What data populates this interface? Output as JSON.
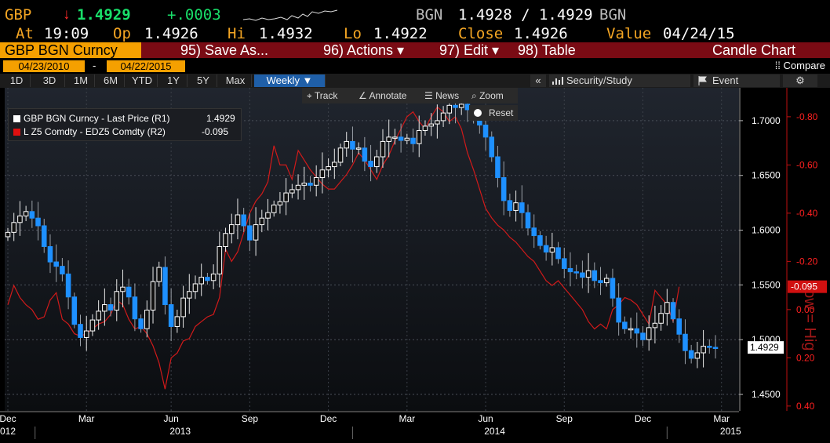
{
  "header": {
    "ticker": "GBP",
    "arrow": "↓",
    "last": "1.4929",
    "change": "+.0003",
    "source": "BGN",
    "bid_ask": "1.4928 / 1.4929",
    "source2": "BGN",
    "at_label": "At",
    "time": "19:09",
    "op_label": "Op",
    "open": "1.4926",
    "hi_label": "Hi",
    "high": "1.4932",
    "lo_label": "Lo",
    "low": "1.4922",
    "close_label": "Close",
    "close": "1.4926",
    "value_label": "Value",
    "value_date": "04/24/15"
  },
  "menu": {
    "security": "GBP BGN Curncy",
    "items": [
      "95) Save As...",
      "96) Actions ▾",
      "97) Edit ▾",
      "98) Table"
    ],
    "chart_type": "Candle Chart"
  },
  "dates": {
    "start": "04/23/2010",
    "sep": "-",
    "end": "04/22/2015",
    "compare": "⁞⁞ Compare"
  },
  "tabs": {
    "periods": [
      "1D",
      "3D",
      "1M",
      "6M",
      "YTD",
      "1Y",
      "5Y",
      "Max"
    ],
    "frequency": "Weekly ▼",
    "collapse": "«",
    "security_study": "Security/Study",
    "event": "Event",
    "settings": "⚙"
  },
  "tools": {
    "track": "Track",
    "annotate": "Annotate",
    "news": "News",
    "zoom": "Zoom",
    "reset": "Reset"
  },
  "colors": {
    "candle_up": "#ffffff",
    "candle_down": "#1e90ff",
    "line": "#d11a1a",
    "bg_top": "#20252e",
    "bg_bottom": "#0b0d10",
    "amber": "#f5a623"
  },
  "chart_data": {
    "type": "candlestick",
    "legend": [
      {
        "label": "GBP BGN Curncy - Last Price (R1)",
        "value": "1.4929",
        "color": "#ffffff"
      },
      {
        "label": "L Z5 Comdty - EDZ5 Comdty (R2)",
        "value": "-0.095",
        "color": "#e01010"
      }
    ],
    "x_labels": [
      {
        "text": "Dec",
        "i": 0,
        "sub": "012"
      },
      {
        "text": "Mar",
        "i": 13
      },
      {
        "text": "Jun",
        "i": 27,
        "year": "2013"
      },
      {
        "text": "Sep",
        "i": 40
      },
      {
        "text": "Dec",
        "i": 53
      },
      {
        "text": "Mar",
        "i": 66
      },
      {
        "text": "Jun",
        "i": 79,
        "year": "2014"
      },
      {
        "text": "Sep",
        "i": 92
      },
      {
        "text": "Dec",
        "i": 105
      },
      {
        "text": "Mar",
        "i": 118,
        "year": "2015"
      }
    ],
    "right_axis": {
      "ticks": [
        "1.4500",
        "1.5000",
        "1.5500",
        "1.6000",
        "1.6500",
        "1.7000"
      ],
      "range": [
        1.435,
        1.73
      ],
      "last_label": "1.4929"
    },
    "right2_axis": {
      "ticks": [
        "-0.80",
        "-0.60",
        "-0.40",
        "-0.20",
        "0.00",
        "0.20",
        "0.40"
      ],
      "range": [
        0.42,
        -0.92
      ],
      "last_label": "-0.095",
      "label": "Low = Hig"
    },
    "closes": [
      1.598,
      1.607,
      1.613,
      1.617,
      1.611,
      1.604,
      1.585,
      1.571,
      1.567,
      1.56,
      1.539,
      1.514,
      1.502,
      1.508,
      1.518,
      1.526,
      1.532,
      1.527,
      1.544,
      1.548,
      1.539,
      1.519,
      1.51,
      1.527,
      1.553,
      1.566,
      1.532,
      1.512,
      1.521,
      1.538,
      1.544,
      1.551,
      1.557,
      1.554,
      1.56,
      1.585,
      1.597,
      1.605,
      1.614,
      1.604,
      1.591,
      1.605,
      1.611,
      1.616,
      1.623,
      1.626,
      1.634,
      1.637,
      1.641,
      1.643,
      1.641,
      1.648,
      1.655,
      1.658,
      1.662,
      1.675,
      1.681,
      1.674,
      1.675,
      1.663,
      1.658,
      1.667,
      1.681,
      1.685,
      1.685,
      1.682,
      1.684,
      1.679,
      1.691,
      1.695,
      1.697,
      1.7,
      1.707,
      1.714,
      1.712,
      1.715,
      1.71,
      1.701,
      1.696,
      1.685,
      1.667,
      1.648,
      1.627,
      1.618,
      1.625,
      1.616,
      1.602,
      1.595,
      1.586,
      1.58,
      1.584,
      1.574,
      1.565,
      1.562,
      1.561,
      1.557,
      1.563,
      1.554,
      1.552,
      1.556,
      1.538,
      1.516,
      1.51,
      1.51,
      1.506,
      1.5,
      1.511,
      1.515,
      1.524,
      1.534,
      1.519,
      1.505,
      1.49,
      1.483,
      1.488,
      1.494,
      1.493,
      1.4929
    ],
    "spread": [
      -0.02,
      -0.1,
      -0.05,
      -0.02,
      0.0,
      0.04,
      0.03,
      -0.04,
      -0.07,
      0.04,
      0.06,
      0.1,
      0.11,
      0.1,
      0.08,
      0.06,
      0.05,
      0.02,
      -0.04,
      -0.02,
      0.04,
      0.08,
      0.07,
      0.1,
      0.15,
      0.22,
      0.33,
      0.2,
      0.18,
      0.13,
      0.12,
      0.07,
      0.05,
      0.03,
      0.02,
      -0.05,
      -0.25,
      -0.2,
      -0.24,
      -0.32,
      -0.4,
      -0.45,
      -0.48,
      -0.53,
      -0.68,
      -0.6,
      -0.6,
      -0.54,
      -0.66,
      -0.62,
      -0.58,
      -0.55,
      -0.52,
      -0.5,
      -0.5,
      -0.53,
      -0.56,
      -0.6,
      -0.65,
      -0.62,
      -0.58,
      -0.54,
      -0.6,
      -0.64,
      -0.7,
      -0.75,
      -0.8,
      -0.82,
      -0.78,
      -0.75,
      -0.8,
      -0.84,
      -0.82,
      -0.78,
      -0.8,
      -0.75,
      -0.65,
      -0.58,
      -0.5,
      -0.42,
      -0.38,
      -0.35,
      -0.33,
      -0.3,
      -0.28,
      -0.25,
      -0.22,
      -0.2,
      -0.16,
      -0.12,
      -0.1,
      -0.12,
      -0.09,
      -0.06,
      -0.03,
      0.0,
      0.05,
      0.08,
      0.06,
      0.08,
      0.0,
      -0.02,
      -0.05,
      -0.04,
      -0.02,
      0.02,
      0.06,
      -0.08,
      -0.05,
      -0.02,
      0.05,
      -0.095
    ]
  }
}
